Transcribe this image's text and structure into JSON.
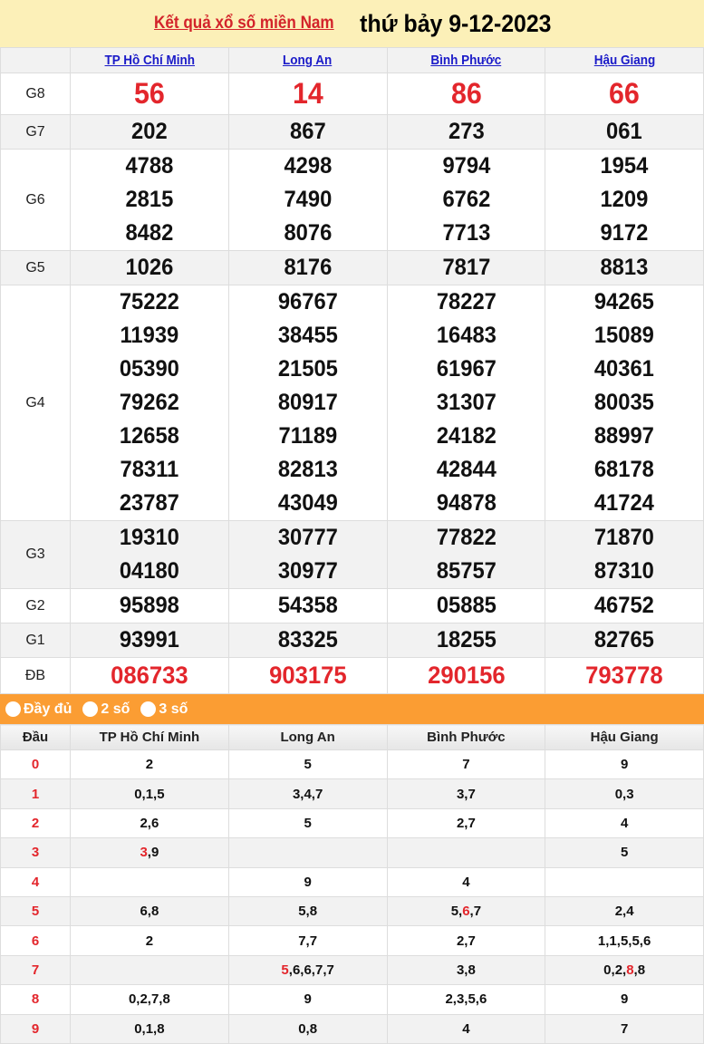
{
  "header": {
    "link": "Kết quả xổ số miền Nam",
    "date": "thứ bảy 9-12-2023"
  },
  "provinces": [
    "TP Hồ Chí Minh",
    "Long An",
    "Bình Phước",
    "Hậu Giang"
  ],
  "prizes": [
    {
      "label": "G8",
      "values": [
        [
          "56"
        ],
        [
          "14"
        ],
        [
          "86"
        ],
        [
          "66"
        ]
      ]
    },
    {
      "label": "G7",
      "values": [
        [
          "202"
        ],
        [
          "867"
        ],
        [
          "273"
        ],
        [
          "061"
        ]
      ]
    },
    {
      "label": "G6",
      "values": [
        [
          "4788",
          "2815",
          "8482"
        ],
        [
          "4298",
          "7490",
          "8076"
        ],
        [
          "9794",
          "6762",
          "7713"
        ],
        [
          "1954",
          "1209",
          "9172"
        ]
      ]
    },
    {
      "label": "G5",
      "values": [
        [
          "1026"
        ],
        [
          "8176"
        ],
        [
          "7817"
        ],
        [
          "8813"
        ]
      ]
    },
    {
      "label": "G4",
      "values": [
        [
          "75222",
          "11939",
          "05390",
          "79262",
          "12658",
          "78311",
          "23787"
        ],
        [
          "96767",
          "38455",
          "21505",
          "80917",
          "71189",
          "82813",
          "43049"
        ],
        [
          "78227",
          "16483",
          "61967",
          "31307",
          "24182",
          "42844",
          "94878"
        ],
        [
          "94265",
          "15089",
          "40361",
          "80035",
          "88997",
          "68178",
          "41724"
        ]
      ]
    },
    {
      "label": "G3",
      "values": [
        [
          "19310",
          "04180"
        ],
        [
          "30777",
          "30977"
        ],
        [
          "77822",
          "85757"
        ],
        [
          "71870",
          "87310"
        ]
      ]
    },
    {
      "label": "G2",
      "values": [
        [
          "95898"
        ],
        [
          "54358"
        ],
        [
          "05885"
        ],
        [
          "46752"
        ]
      ]
    },
    {
      "label": "G1",
      "values": [
        [
          "93991"
        ],
        [
          "83325"
        ],
        [
          "18255"
        ],
        [
          "82765"
        ]
      ]
    },
    {
      "label": "ĐB",
      "values": [
        [
          "086733"
        ],
        [
          "903175"
        ],
        [
          "290156"
        ],
        [
          "793778"
        ]
      ]
    }
  ],
  "options": [
    "Đầy đủ",
    "2 số",
    "3 số"
  ],
  "loto": {
    "head_label": "Đầu",
    "colors": {
      "highlight": "#e3262c",
      "accent": "#fb9d33"
    },
    "rows": [
      {
        "head": "0",
        "cells": [
          {
            "v": "2"
          },
          {
            "v": "5"
          },
          {
            "v": "7"
          },
          {
            "v": "9"
          }
        ]
      },
      {
        "head": "1",
        "cells": [
          {
            "v": "0,1,5"
          },
          {
            "v": "3,4,7"
          },
          {
            "v": "3,7"
          },
          {
            "v": "0,3"
          }
        ]
      },
      {
        "head": "2",
        "cells": [
          {
            "v": "2,6"
          },
          {
            "v": "5"
          },
          {
            "v": "2,7"
          },
          {
            "v": "4"
          }
        ]
      },
      {
        "head": "3",
        "cells": [
          {
            "v": "3,9",
            "red": [
              0
            ]
          },
          {
            "v": ""
          },
          {
            "v": ""
          },
          {
            "v": "5"
          }
        ]
      },
      {
        "head": "4",
        "cells": [
          {
            "v": ""
          },
          {
            "v": "9"
          },
          {
            "v": "4"
          },
          {
            "v": ""
          }
        ]
      },
      {
        "head": "5",
        "cells": [
          {
            "v": "6,8"
          },
          {
            "v": "5,8"
          },
          {
            "v": "5,6,7",
            "red": [
              1
            ]
          },
          {
            "v": "2,4"
          }
        ]
      },
      {
        "head": "6",
        "cells": [
          {
            "v": "2"
          },
          {
            "v": "7,7"
          },
          {
            "v": "2,7"
          },
          {
            "v": "1,1,5,5,6"
          }
        ]
      },
      {
        "head": "7",
        "cells": [
          {
            "v": ""
          },
          {
            "v": "5,6,6,7,7",
            "red": [
              0
            ]
          },
          {
            "v": "3,8"
          },
          {
            "v": "0,2,8,8",
            "red": [
              2
            ]
          }
        ]
      },
      {
        "head": "8",
        "cells": [
          {
            "v": "0,2,7,8"
          },
          {
            "v": "9"
          },
          {
            "v": "2,3,5,6"
          },
          {
            "v": "9"
          }
        ]
      },
      {
        "head": "9",
        "cells": [
          {
            "v": "0,1,8"
          },
          {
            "v": "0,8"
          },
          {
            "v": "4"
          },
          {
            "v": "7"
          }
        ]
      }
    ]
  }
}
